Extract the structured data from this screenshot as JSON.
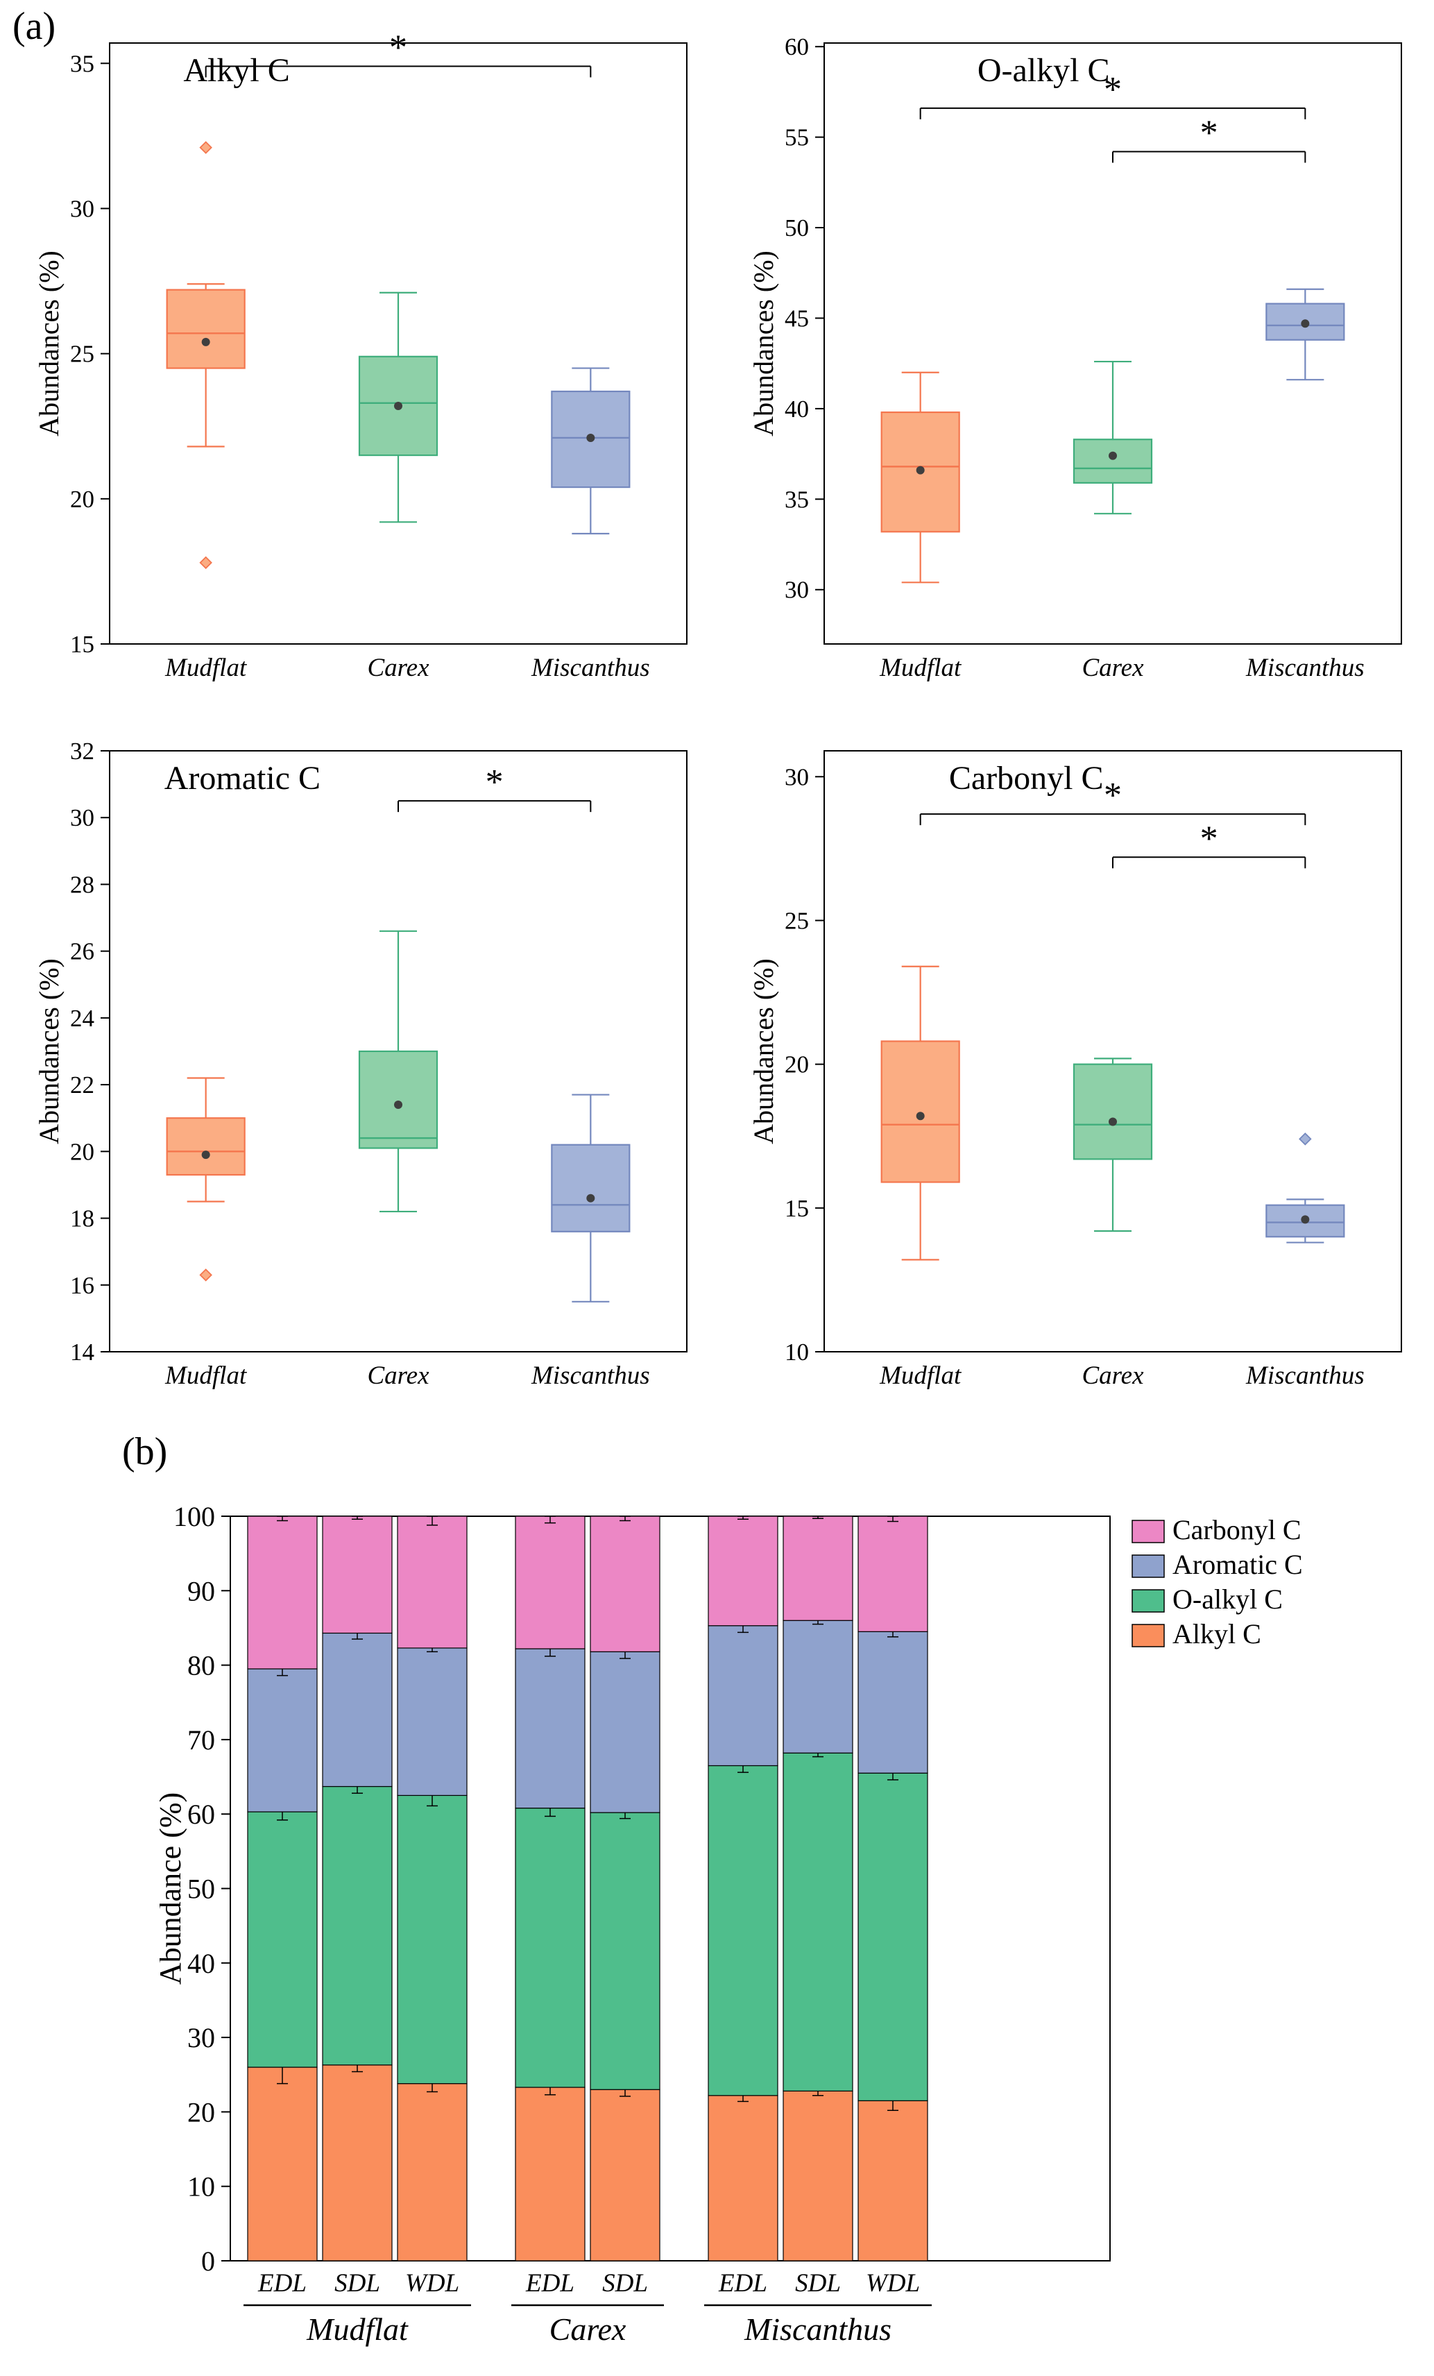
{
  "panel_a": {
    "label": "(a)"
  },
  "panel_b": {
    "label": "(b)"
  },
  "palette": {
    "orange": {
      "fill": "#FBAD83",
      "stroke": "#F4764E"
    },
    "green": {
      "fill": "#8ED0A8",
      "stroke": "#3FAE7C"
    },
    "blue": {
      "fill": "#A3B3D8",
      "stroke": "#7488BE"
    },
    "mean_dot": "#3F3F3F",
    "axis": "#000000"
  },
  "chart_data": [
    {
      "type": "box",
      "id": "alkyl",
      "title": "Alkyl C",
      "ylabel": "Abundances (%)",
      "ylim": [
        15,
        35.7
      ],
      "yticks": [
        15,
        20,
        25,
        30,
        35
      ],
      "title_x_frac": 0.22,
      "categories": [
        "Mudflat",
        "Carex",
        "Miscanthus"
      ],
      "boxes": [
        {
          "category": "Mudflat",
          "color": "orange",
          "low": 21.8,
          "q1": 24.5,
          "median": 25.7,
          "q3": 27.2,
          "high": 27.4,
          "mean": 25.4,
          "outliers": [
            32.1,
            17.8
          ]
        },
        {
          "category": "Carex",
          "color": "green",
          "low": 19.2,
          "q1": 21.5,
          "median": 23.3,
          "q3": 24.9,
          "high": 27.1,
          "mean": 23.2,
          "outliers": []
        },
        {
          "category": "Miscanthus",
          "color": "blue",
          "low": 18.8,
          "q1": 20.4,
          "median": 22.1,
          "q3": 23.7,
          "high": 24.5,
          "mean": 22.1,
          "outliers": []
        }
      ],
      "significance": [
        {
          "from": 0,
          "to": 2,
          "y": 34.9,
          "label": "*"
        }
      ]
    },
    {
      "type": "box",
      "id": "oalkyl",
      "title": "O-alkyl C",
      "ylabel": "Abundances (%)",
      "ylim": [
        27,
        60.2
      ],
      "yticks": [
        30,
        35,
        40,
        45,
        50,
        55,
        60
      ],
      "title_x_frac": 0.38,
      "categories": [
        "Mudflat",
        "Carex",
        "Miscanthus"
      ],
      "boxes": [
        {
          "category": "Mudflat",
          "color": "orange",
          "low": 30.4,
          "q1": 33.2,
          "median": 36.8,
          "q3": 39.8,
          "high": 42.0,
          "mean": 36.6,
          "outliers": []
        },
        {
          "category": "Carex",
          "color": "green",
          "low": 34.2,
          "q1": 35.9,
          "median": 36.7,
          "q3": 38.3,
          "high": 42.6,
          "mean": 37.4,
          "outliers": []
        },
        {
          "category": "Miscanthus",
          "color": "blue",
          "low": 41.6,
          "q1": 43.8,
          "median": 44.6,
          "q3": 45.8,
          "high": 46.6,
          "mean": 44.7,
          "outliers": []
        }
      ],
      "significance": [
        {
          "from": 0,
          "to": 2,
          "y": 56.6,
          "label": "*"
        },
        {
          "from": 1,
          "to": 2,
          "y": 54.2,
          "label": "*"
        }
      ]
    },
    {
      "type": "box",
      "id": "aromatic",
      "title": "Aromatic C",
      "ylabel": "Abundances (%)",
      "ylim": [
        14,
        32
      ],
      "yticks": [
        14,
        16,
        18,
        20,
        22,
        24,
        26,
        28,
        30,
        32
      ],
      "title_x_frac": 0.23,
      "categories": [
        "Mudflat",
        "Carex",
        "Miscanthus"
      ],
      "boxes": [
        {
          "category": "Mudflat",
          "color": "orange",
          "low": 18.5,
          "q1": 19.3,
          "median": 20.0,
          "q3": 21.0,
          "high": 22.2,
          "mean": 19.9,
          "outliers": [
            16.3
          ]
        },
        {
          "category": "Carex",
          "color": "green",
          "low": 18.2,
          "q1": 20.1,
          "median": 20.4,
          "q3": 23.0,
          "high": 26.6,
          "mean": 21.4,
          "outliers": []
        },
        {
          "category": "Miscanthus",
          "color": "blue",
          "low": 15.5,
          "q1": 17.6,
          "median": 18.4,
          "q3": 20.2,
          "high": 21.7,
          "mean": 18.6,
          "outliers": []
        }
      ],
      "significance": [
        {
          "from": 1,
          "to": 2,
          "y": 30.5,
          "label": "*"
        }
      ]
    },
    {
      "type": "box",
      "id": "carbonyl",
      "title": "Carbonyl C",
      "ylabel": "Abundances (%)",
      "ylim": [
        10,
        30.9
      ],
      "yticks": [
        10,
        15,
        20,
        25,
        30
      ],
      "title_x_frac": 0.35,
      "categories": [
        "Mudflat",
        "Carex",
        "Miscanthus"
      ],
      "boxes": [
        {
          "category": "Mudflat",
          "color": "orange",
          "low": 13.2,
          "q1": 15.9,
          "median": 17.9,
          "q3": 20.8,
          "high": 23.4,
          "mean": 18.2,
          "outliers": []
        },
        {
          "category": "Carex",
          "color": "green",
          "low": 14.2,
          "q1": 16.7,
          "median": 17.9,
          "q3": 20.0,
          "high": 20.2,
          "mean": 18.0,
          "outliers": []
        },
        {
          "category": "Miscanthus",
          "color": "blue",
          "low": 13.8,
          "q1": 14.0,
          "median": 14.5,
          "q3": 15.1,
          "high": 15.3,
          "mean": 14.6,
          "outliers": [
            17.4
          ]
        }
      ],
      "significance": [
        {
          "from": 0,
          "to": 2,
          "y": 28.7,
          "label": "*"
        },
        {
          "from": 1,
          "to": 2,
          "y": 27.2,
          "label": "*"
        }
      ]
    },
    {
      "type": "stacked_bar",
      "id": "stacked",
      "ylabel": "Abundance (%)",
      "ylim": [
        0,
        100
      ],
      "yticks": [
        0,
        10,
        20,
        30,
        40,
        50,
        60,
        70,
        80,
        90,
        100
      ],
      "groups": [
        {
          "name": "Mudflat",
          "bars": [
            "EDL",
            "SDL",
            "WDL"
          ]
        },
        {
          "name": "Carex",
          "bars": [
            "EDL",
            "SDL"
          ]
        },
        {
          "name": "Miscanthus",
          "bars": [
            "EDL",
            "SDL",
            "WDL"
          ]
        }
      ],
      "stack_order": [
        "Alkyl C",
        "O-alkyl C",
        "Aromatic C",
        "Carbonyl C"
      ],
      "legend": [
        "Carbonyl C",
        "Aromatic C",
        "O-alkyl C",
        "Alkyl C"
      ],
      "series_colors": {
        "Alkyl C": "#FA8E5C",
        "O-alkyl C": "#4FBE8C",
        "Aromatic C": "#8FA2CD",
        "Carbonyl C": "#EC87C5"
      },
      "values": {
        "Alkyl C": [
          26.0,
          26.3,
          23.8,
          23.3,
          23.0,
          22.2,
          22.8,
          21.5
        ],
        "O-alkyl C": [
          34.3,
          37.4,
          38.7,
          37.5,
          37.2,
          44.3,
          45.4,
          44.0
        ],
        "Aromatic C": [
          19.2,
          20.6,
          19.8,
          21.4,
          21.6,
          18.8,
          17.8,
          19.0
        ],
        "Carbonyl C": [
          20.5,
          15.7,
          17.7,
          17.8,
          18.2,
          14.7,
          14.0,
          15.5
        ]
      },
      "errors": {
        "Alkyl C": [
          2.2,
          0.9,
          1.1,
          1.0,
          0.9,
          0.8,
          0.6,
          1.3
        ],
        "O-alkyl C": [
          1.1,
          0.9,
          1.4,
          1.1,
          0.8,
          0.9,
          0.5,
          0.9
        ],
        "Aromatic C": [
          0.9,
          0.8,
          0.5,
          1.0,
          0.9,
          0.9,
          0.5,
          0.7
        ],
        "Carbonyl C": [
          0.6,
          0.4,
          1.2,
          0.9,
          0.6,
          0.4,
          0.3,
          0.7
        ]
      }
    }
  ]
}
